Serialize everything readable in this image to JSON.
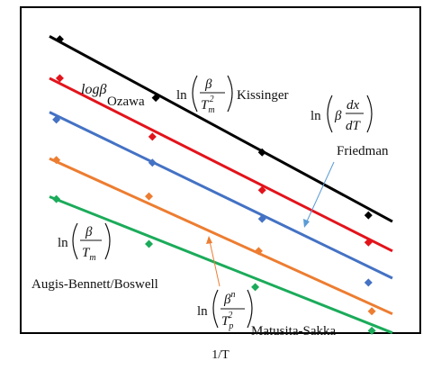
{
  "chart_data": {
    "type": "scatter",
    "title": "",
    "xlabel": "1/T",
    "ylabel": "",
    "xlim": [
      0,
      100
    ],
    "ylim": [
      0,
      100
    ],
    "grid": false,
    "legend": "none",
    "series": [
      {
        "name": "Kissinger",
        "color": "#000000",
        "points": [
          [
            3,
            99.5
          ],
          [
            31,
            79.7
          ],
          [
            62,
            61.2
          ],
          [
            93,
            39.9
          ]
        ],
        "fit": [
          [
            0,
            100.5
          ],
          [
            100,
            37.8
          ]
        ]
      },
      {
        "name": "Ozawa",
        "color": "#e3131b",
        "points": [
          [
            3,
            86.3
          ],
          [
            30,
            66.5
          ],
          [
            62,
            48.4
          ],
          [
            93,
            30.7
          ]
        ],
        "fit": [
          [
            0,
            86.3
          ],
          [
            100,
            27.8
          ]
        ]
      },
      {
        "name": "Friedman",
        "color": "#4472c4",
        "points": [
          [
            2,
            72.3
          ],
          [
            30,
            57.7
          ],
          [
            62,
            38.7
          ],
          [
            93,
            17.1
          ]
        ],
        "fit": [
          [
            0,
            74.8
          ],
          [
            100,
            18.6
          ]
        ]
      },
      {
        "name": "Augis-Bennett/Boswell",
        "color": "#ed7d31",
        "points": [
          [
            2,
            58.6
          ],
          [
            29,
            46.3
          ],
          [
            61,
            27.8
          ],
          [
            94,
            7.4
          ]
        ],
        "fit": [
          [
            0,
            59.1
          ],
          [
            100,
            6.5
          ]
        ]
      },
      {
        "name": "Matusita-Sakka",
        "color": "#1bab5a",
        "points": [
          [
            2,
            45.4
          ],
          [
            29,
            30.2
          ],
          [
            60,
            15.6
          ],
          [
            94,
            0.8
          ]
        ],
        "fit": [
          [
            0,
            46.2
          ],
          [
            100,
            0.1
          ]
        ]
      }
    ],
    "annotations": [
      {
        "prefix": "ln",
        "num": "β",
        "den": "T",
        "den_sub": "m",
        "den_sup": "2",
        "name": "Kissinger"
      },
      {
        "prefix": "ln",
        "text": "β",
        "num": "dx",
        "den": "dT",
        "name": "Friedman"
      },
      {
        "text": "logβ",
        "name": "Ozawa"
      },
      {
        "prefix": "ln",
        "num": "β",
        "den": "T",
        "den_sub": "m",
        "name": "Augis-Bennett/Boswell"
      },
      {
        "prefix": "ln",
        "num": "β",
        "num_sup": "n",
        "den": "T",
        "den_sub": "p",
        "den_sup": "2",
        "name": "Matusita-Sakka"
      }
    ]
  }
}
